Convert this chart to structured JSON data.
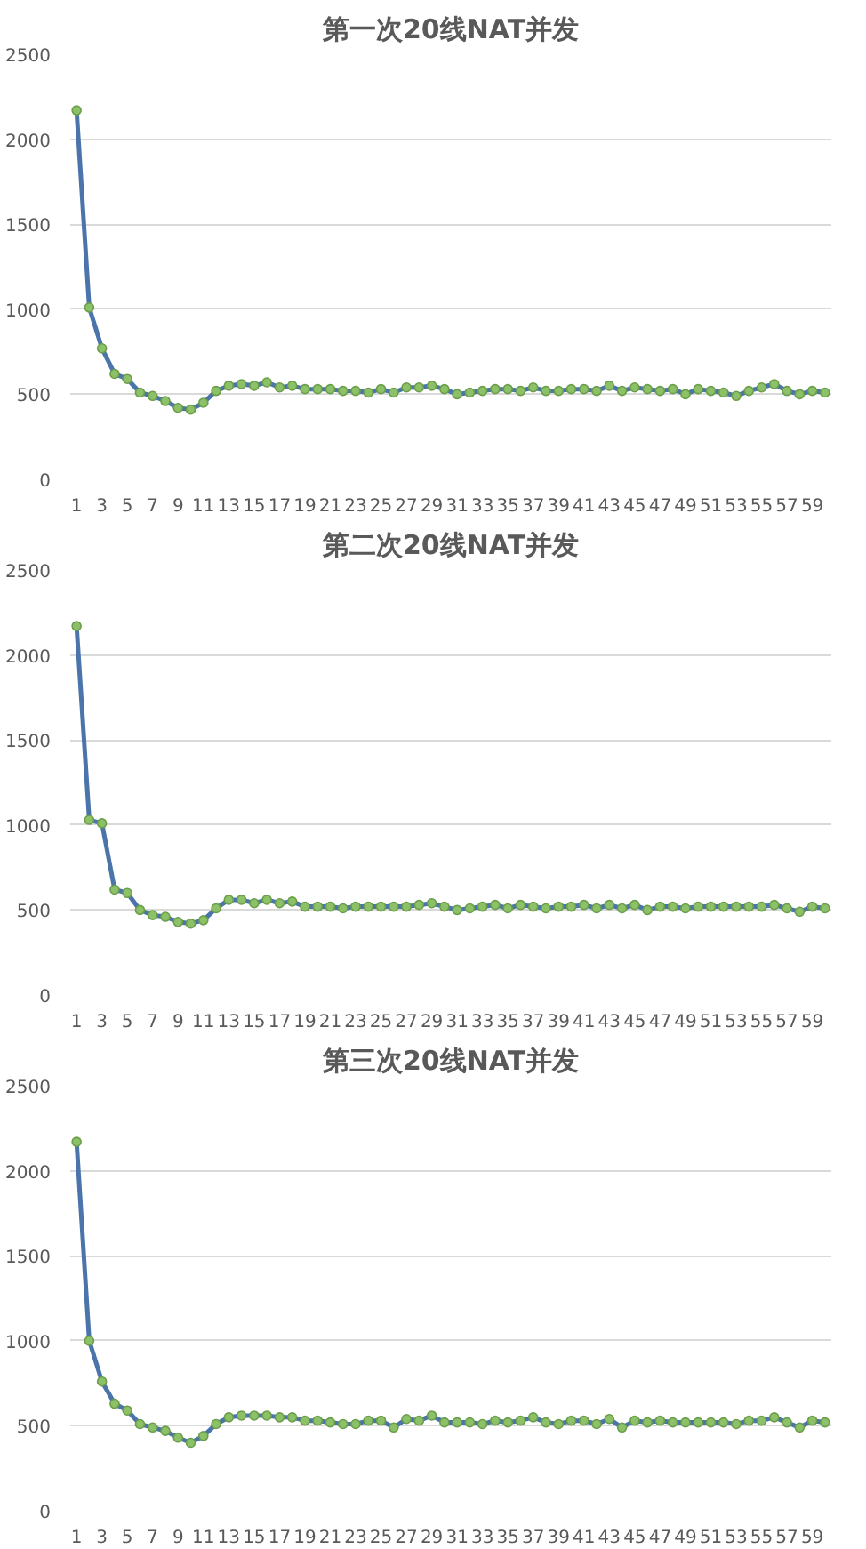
{
  "chart_data": [
    {
      "type": "line",
      "title": "第一次20线NAT并发",
      "x": [
        1,
        2,
        3,
        4,
        5,
        6,
        7,
        8,
        9,
        10,
        11,
        12,
        13,
        14,
        15,
        16,
        17,
        18,
        19,
        20,
        21,
        22,
        23,
        24,
        25,
        26,
        27,
        28,
        29,
        30,
        31,
        32,
        33,
        34,
        35,
        36,
        37,
        38,
        39,
        40,
        41,
        42,
        43,
        44,
        45,
        46,
        47,
        48,
        49,
        50,
        51,
        52,
        53,
        54,
        55,
        56,
        57,
        58,
        59,
        60
      ],
      "xlim": [
        0.5,
        60.5
      ],
      "xticks": [
        1,
        3,
        5,
        7,
        9,
        11,
        13,
        15,
        17,
        19,
        21,
        23,
        25,
        27,
        29,
        31,
        33,
        35,
        37,
        39,
        41,
        43,
        45,
        47,
        49,
        51,
        53,
        55,
        57,
        59
      ],
      "ylim": [
        0,
        2500
      ],
      "yticks": [
        0,
        500,
        1000,
        1500,
        2000,
        2500
      ],
      "grid": "y",
      "marker": "circle",
      "line_style": "solid",
      "series": [
        {
          "color": "#4a74aa",
          "values": [
            2170,
            1010,
            770,
            620,
            590,
            510,
            490,
            460,
            420,
            410,
            450,
            520,
            550,
            560,
            550,
            570,
            540,
            550,
            530,
            530,
            530,
            520,
            520,
            510,
            530,
            510,
            540,
            540,
            550,
            530,
            500,
            510,
            520,
            530,
            530,
            520,
            540,
            520,
            520,
            530,
            530,
            520,
            550,
            520,
            540,
            530,
            520,
            530,
            500,
            530,
            520,
            510,
            490,
            520,
            540,
            560,
            520,
            500,
            520,
            510
          ]
        }
      ]
    },
    {
      "type": "line",
      "title": "第二次20线NAT并发",
      "x": [
        1,
        2,
        3,
        4,
        5,
        6,
        7,
        8,
        9,
        10,
        11,
        12,
        13,
        14,
        15,
        16,
        17,
        18,
        19,
        20,
        21,
        22,
        23,
        24,
        25,
        26,
        27,
        28,
        29,
        30,
        31,
        32,
        33,
        34,
        35,
        36,
        37,
        38,
        39,
        40,
        41,
        42,
        43,
        44,
        45,
        46,
        47,
        48,
        49,
        50,
        51,
        52,
        53,
        54,
        55,
        56,
        57,
        58,
        59,
        60
      ],
      "xlim": [
        0.5,
        60.5
      ],
      "xticks": [
        1,
        3,
        5,
        7,
        9,
        11,
        13,
        15,
        17,
        19,
        21,
        23,
        25,
        27,
        29,
        31,
        33,
        35,
        37,
        39,
        41,
        43,
        45,
        47,
        49,
        51,
        53,
        55,
        57,
        59
      ],
      "ylim": [
        0,
        2500
      ],
      "yticks": [
        0,
        500,
        1000,
        1500,
        2000,
        2500
      ],
      "grid": "y",
      "marker": "circle",
      "line_style": "solid",
      "series": [
        {
          "color": "#4a74aa",
          "values": [
            2170,
            1030,
            1010,
            620,
            600,
            500,
            470,
            460,
            430,
            420,
            440,
            510,
            560,
            560,
            540,
            560,
            540,
            550,
            520,
            520,
            520,
            510,
            520,
            520,
            520,
            520,
            520,
            530,
            540,
            520,
            500,
            510,
            520,
            530,
            510,
            530,
            520,
            510,
            520,
            520,
            530,
            510,
            530,
            510,
            530,
            500,
            520,
            520,
            510,
            520,
            520,
            520,
            520,
            520,
            520,
            530,
            510,
            490,
            520,
            510
          ]
        }
      ]
    },
    {
      "type": "line",
      "title": "第三次20线NAT并发",
      "x": [
        1,
        2,
        3,
        4,
        5,
        6,
        7,
        8,
        9,
        10,
        11,
        12,
        13,
        14,
        15,
        16,
        17,
        18,
        19,
        20,
        21,
        22,
        23,
        24,
        25,
        26,
        27,
        28,
        29,
        30,
        31,
        32,
        33,
        34,
        35,
        36,
        37,
        38,
        39,
        40,
        41,
        42,
        43,
        44,
        45,
        46,
        47,
        48,
        49,
        50,
        51,
        52,
        53,
        54,
        55,
        56,
        57,
        58,
        59,
        60
      ],
      "xlim": [
        0.5,
        60.5
      ],
      "xticks": [
        1,
        3,
        5,
        7,
        9,
        11,
        13,
        15,
        17,
        19,
        21,
        23,
        25,
        27,
        29,
        31,
        33,
        35,
        37,
        39,
        41,
        43,
        45,
        47,
        49,
        51,
        53,
        55,
        57,
        59
      ],
      "ylim": [
        0,
        2500
      ],
      "yticks": [
        0,
        500,
        1000,
        1500,
        2000,
        2500
      ],
      "grid": "y",
      "marker": "circle",
      "line_style": "solid",
      "series": [
        {
          "color": "#4a74aa",
          "values": [
            2170,
            1000,
            760,
            630,
            590,
            510,
            490,
            470,
            430,
            400,
            440,
            510,
            550,
            560,
            560,
            560,
            550,
            550,
            530,
            530,
            520,
            510,
            510,
            530,
            530,
            490,
            540,
            530,
            560,
            520,
            520,
            520,
            510,
            530,
            520,
            530,
            550,
            520,
            510,
            530,
            530,
            510,
            540,
            490,
            530,
            520,
            530,
            520,
            520,
            520,
            520,
            520,
            510,
            530,
            530,
            550,
            520,
            490,
            530,
            520
          ]
        }
      ]
    }
  ]
}
